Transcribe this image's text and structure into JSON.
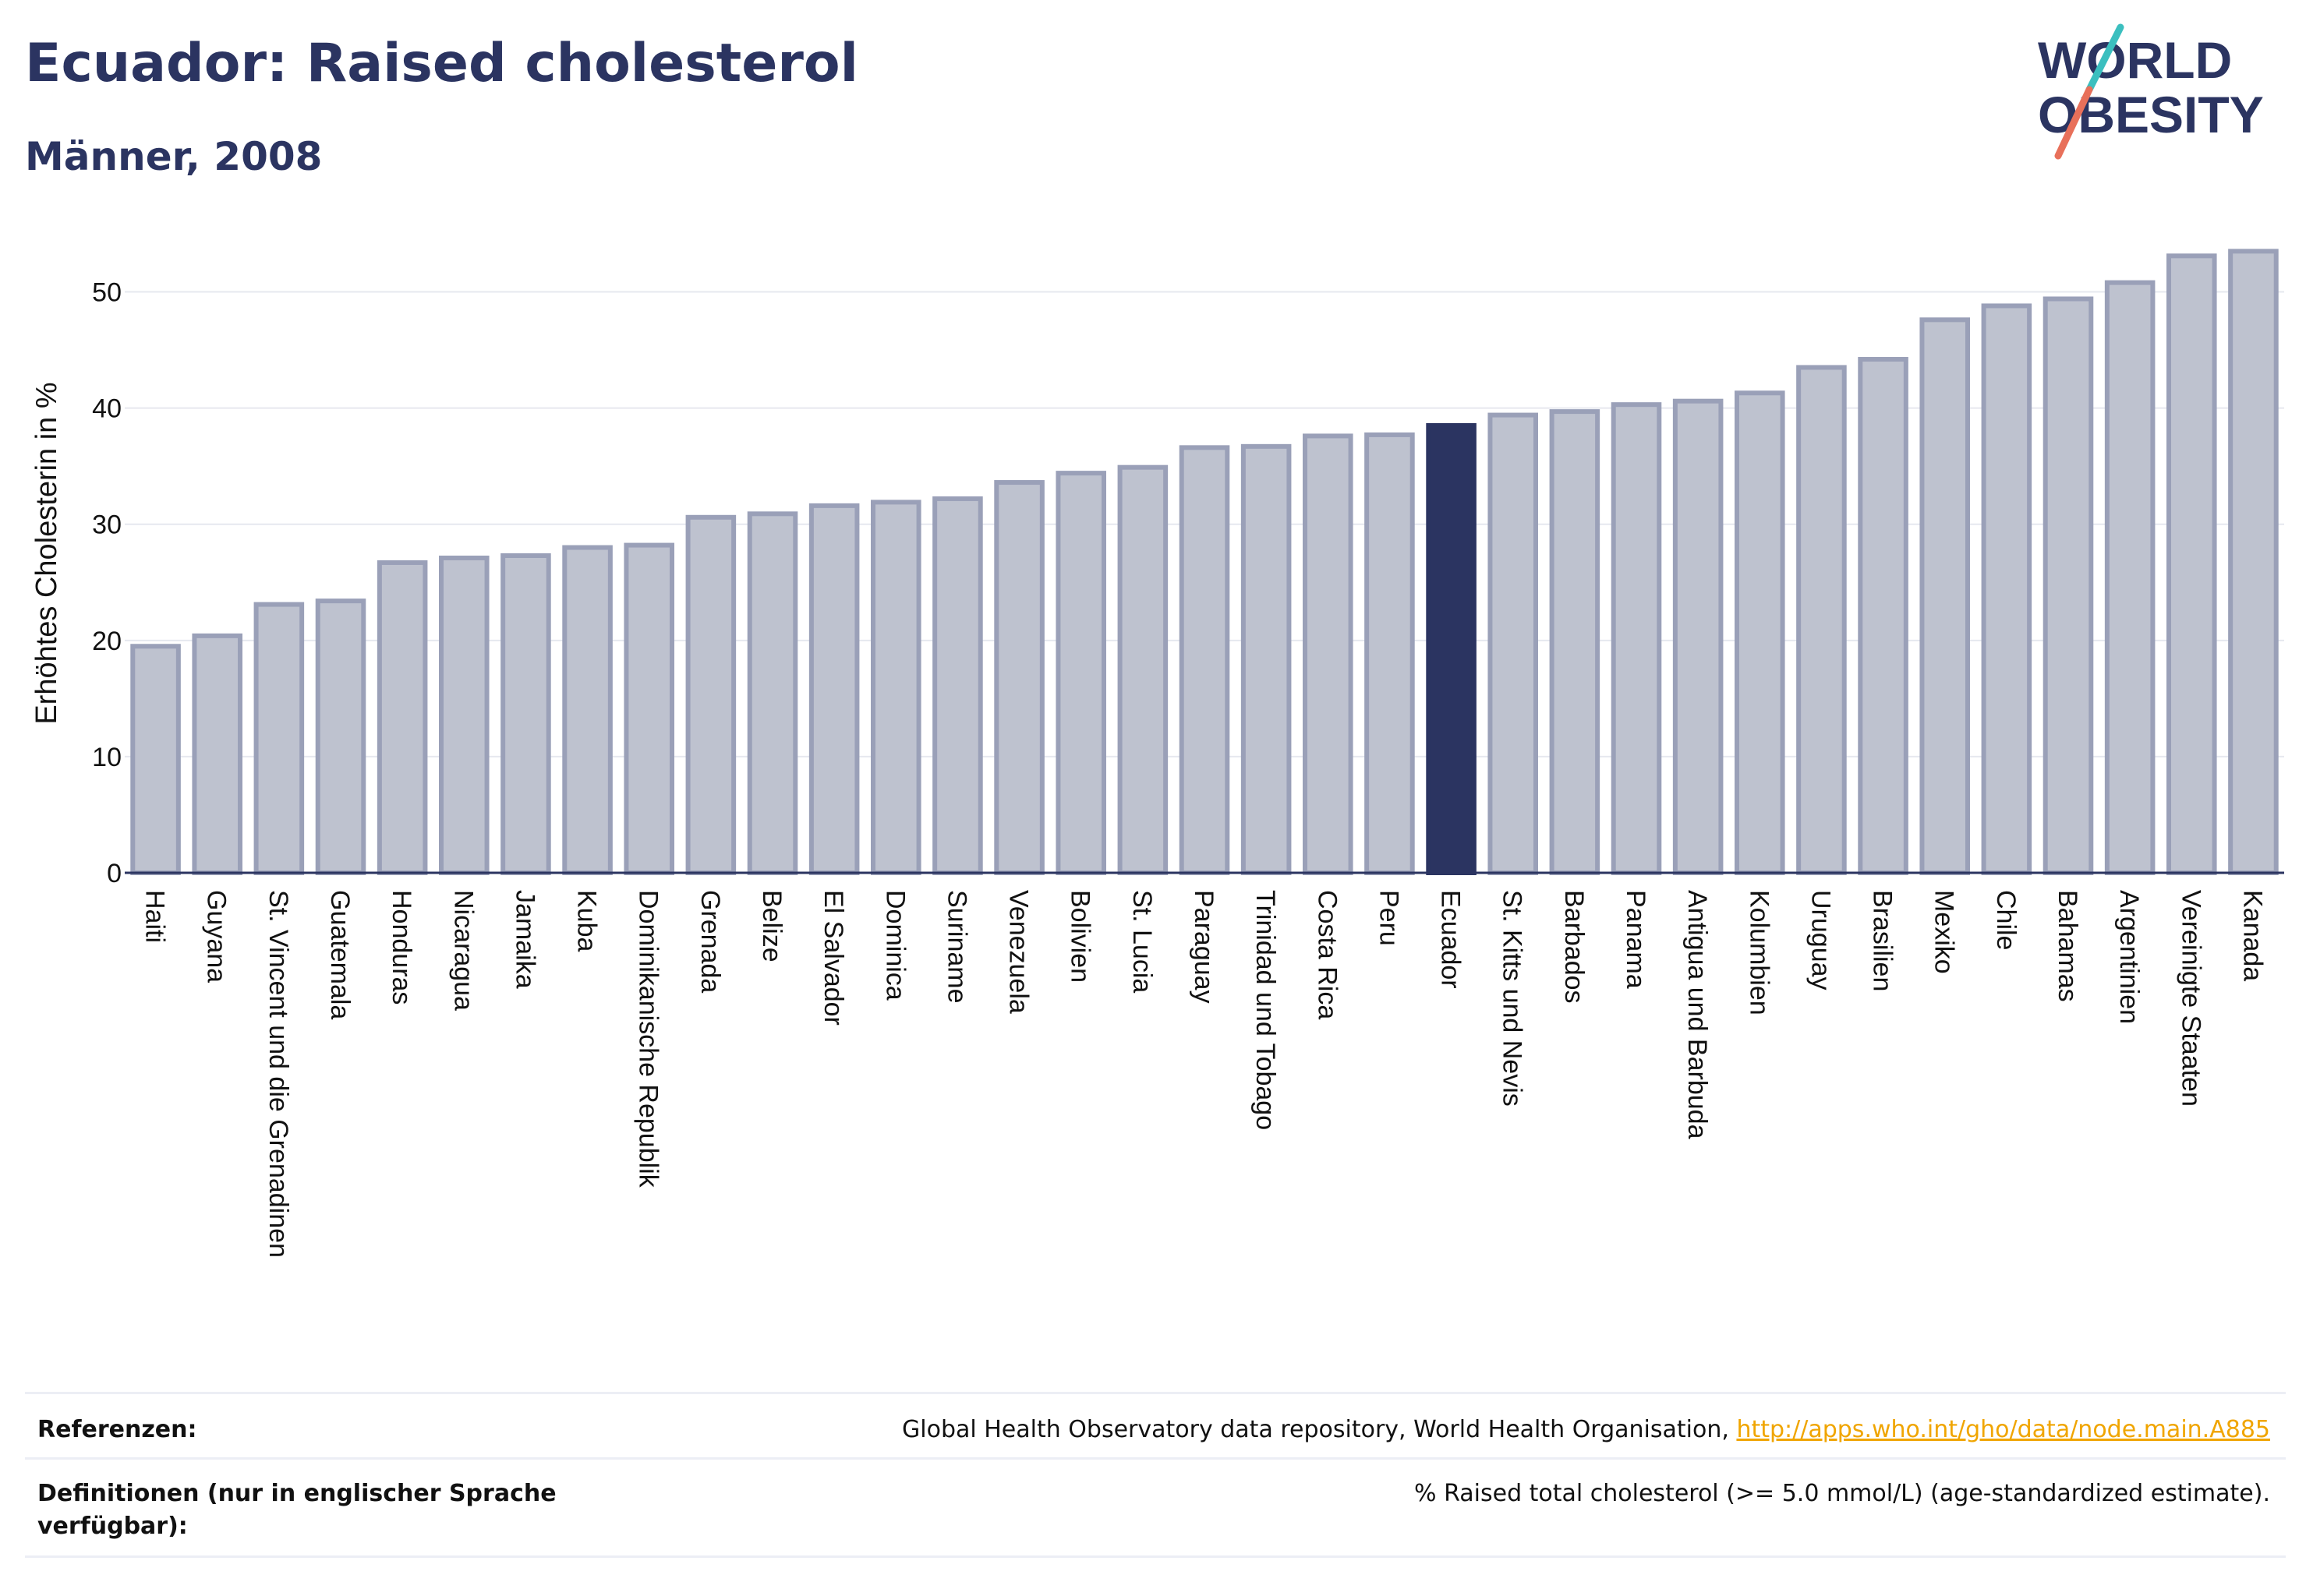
{
  "header": {
    "title": "Ecuador: Raised cholesterol",
    "subtitle": "Männer, 2008"
  },
  "logo": {
    "line1": "WORLD",
    "line2": "OBESITY",
    "colors": {
      "text": "#2b3461",
      "slash_top": "#3bbfbf",
      "slash_bottom": "#e8705a"
    }
  },
  "chart_data": {
    "type": "bar",
    "title": "",
    "xlabel": "",
    "ylabel": "Erhöhtes Cholesterin in %",
    "ylim": [
      0,
      55
    ],
    "yticks": [
      0,
      10,
      20,
      30,
      40,
      50
    ],
    "grid": true,
    "highlight": "Ecuador",
    "colors": {
      "bar": "#bec2cf",
      "bar_edge": "#9aa0b8",
      "highlight": "#2b3461"
    },
    "categories": [
      "Haiti",
      "Guyana",
      "St. Vincent und die Grenadinen",
      "Guatemala",
      "Honduras",
      "Nicaragua",
      "Jamaika",
      "Kuba",
      "Dominikanische Republik",
      "Grenada",
      "Belize",
      "El Salvador",
      "Dominica",
      "Suriname",
      "Venezuela",
      "Bolivien",
      "St. Lucia",
      "Paraguay",
      "Trinidad und Tobago",
      "Costa Rica",
      "Peru",
      "Ecuador",
      "St. Kitts und Nevis",
      "Barbados",
      "Panama",
      "Antigua und Barbuda",
      "Kolumbien",
      "Uruguay",
      "Brasilien",
      "Mexiko",
      "Chile",
      "Bahamas",
      "Argentinien",
      "Vereinigte Staaten",
      "Kanada"
    ],
    "values": [
      19.5,
      20.4,
      23.1,
      23.4,
      26.7,
      27.1,
      27.3,
      28.0,
      28.2,
      30.6,
      30.9,
      31.6,
      31.9,
      32.2,
      33.6,
      34.4,
      34.9,
      36.6,
      36.7,
      37.6,
      37.7,
      38.5,
      39.4,
      39.7,
      40.3,
      40.6,
      41.3,
      43.5,
      44.2,
      47.6,
      48.8,
      49.4,
      50.8,
      53.1,
      53.5
    ]
  },
  "footer": {
    "references_label": "Referenzen:",
    "references_text": "Global Health Observatory data repository, World Health Organisation, ",
    "references_link": "http://apps.who.int/gho/data/node.main.A885",
    "definitions_label": "Definitionen (nur in englischer Sprache verfügbar):",
    "definitions_text": "% Raised total cholesterol (>= 5.0 mmol/L) (age-standardized estimate)."
  }
}
